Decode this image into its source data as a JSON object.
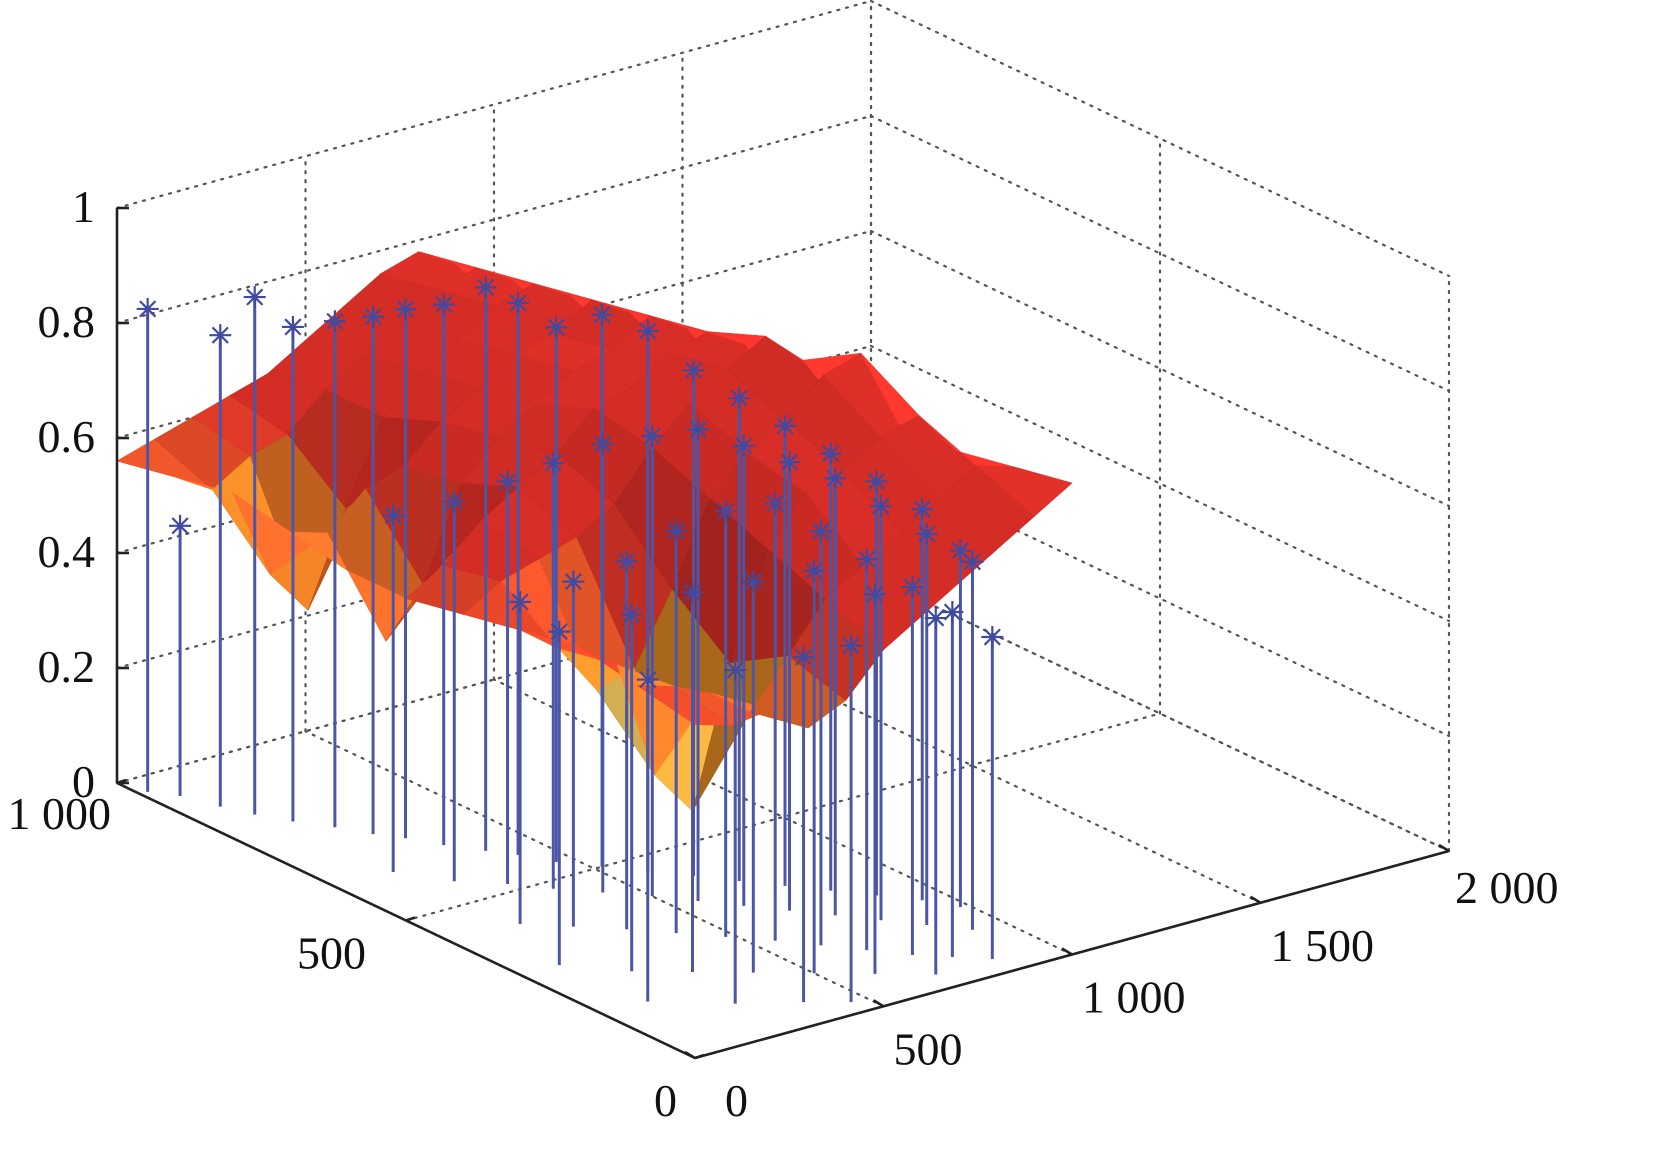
{
  "chart_data": {
    "type": "surface3d-stem",
    "title": "",
    "xlabel": "",
    "ylabel": "",
    "zlabel": "",
    "xlim": [
      0,
      2000
    ],
    "ylim": [
      0,
      1000
    ],
    "zlim": [
      0,
      1
    ],
    "x_ticks": [
      0,
      500,
      1000,
      1500,
      2000
    ],
    "x_tick_labels": [
      "0",
      "500",
      "1 000",
      "1 500",
      "2 000"
    ],
    "y_ticks": [
      0,
      500,
      1000
    ],
    "y_tick_labels": [
      "0",
      "500",
      "1 000"
    ],
    "z_ticks": [
      0,
      0.2,
      0.4,
      0.6,
      0.8,
      1
    ],
    "z_tick_labels": [
      "0",
      "0.2",
      "0.4",
      "0.6",
      "0.8",
      "1"
    ],
    "grid": true,
    "colors": {
      "surface_high": "#e8312a",
      "surface_mid": "#f2a026",
      "surface_low": "#2fb3d6",
      "stem": "#4b57a6",
      "marker": "#3f4aa0"
    },
    "surface": {
      "x": [
        0,
        100,
        200,
        300,
        400,
        500,
        600,
        700,
        800,
        900,
        1000
      ],
      "y": [
        0,
        100,
        200,
        300,
        400,
        500,
        600,
        700,
        800,
        900,
        1000
      ],
      "z": [
        [
          0.58,
          0.56,
          0.57,
          0.52,
          0.55,
          0.62,
          0.66,
          0.7,
          0.74,
          0.78,
          0.82
        ],
        [
          0.6,
          0.58,
          0.55,
          0.5,
          0.58,
          0.66,
          0.7,
          0.74,
          0.78,
          0.82,
          0.8
        ],
        [
          0.62,
          0.57,
          0.36,
          0.28,
          0.52,
          0.7,
          0.78,
          0.8,
          0.84,
          0.86,
          0.78
        ],
        [
          0.6,
          0.55,
          0.46,
          0.48,
          0.6,
          0.74,
          0.8,
          0.84,
          0.9,
          0.92,
          0.78
        ],
        [
          0.58,
          0.62,
          0.64,
          0.66,
          0.7,
          0.78,
          0.84,
          0.88,
          0.92,
          0.86,
          0.76
        ],
        [
          0.56,
          0.6,
          0.66,
          0.7,
          0.74,
          0.8,
          0.82,
          0.86,
          0.88,
          0.84,
          0.74
        ],
        [
          0.56,
          0.42,
          0.5,
          0.66,
          0.72,
          0.76,
          0.8,
          0.82,
          0.86,
          0.82,
          0.72
        ],
        [
          0.58,
          0.56,
          0.62,
          0.64,
          0.7,
          0.74,
          0.78,
          0.8,
          0.84,
          0.8,
          0.72
        ],
        [
          0.6,
          0.44,
          0.36,
          0.52,
          0.66,
          0.72,
          0.76,
          0.8,
          0.82,
          0.78,
          0.7
        ],
        [
          0.58,
          0.54,
          0.58,
          0.6,
          0.66,
          0.7,
          0.74,
          0.78,
          0.8,
          0.76,
          0.68
        ],
        [
          0.56,
          0.58,
          0.6,
          0.62,
          0.64,
          0.68,
          0.72,
          0.76,
          0.78,
          0.74,
          0.66
        ]
      ]
    },
    "stem_points": [
      {
        "x": 20,
        "y": 960,
        "z": 0.84
      },
      {
        "x": 60,
        "y": 930,
        "z": 0.47
      },
      {
        "x": 90,
        "y": 880,
        "z": 0.82
      },
      {
        "x": 120,
        "y": 840,
        "z": 0.9
      },
      {
        "x": 160,
        "y": 800,
        "z": 0.86
      },
      {
        "x": 210,
        "y": 760,
        "z": 0.88
      },
      {
        "x": 250,
        "y": 720,
        "z": 0.9
      },
      {
        "x": 290,
        "y": 690,
        "z": 0.92
      },
      {
        "x": 330,
        "y": 650,
        "z": 0.94
      },
      {
        "x": 380,
        "y": 610,
        "z": 0.98
      },
      {
        "x": 420,
        "y": 580,
        "z": 0.96
      },
      {
        "x": 460,
        "y": 540,
        "z": 0.93
      },
      {
        "x": 520,
        "y": 500,
        "z": 0.96
      },
      {
        "x": 580,
        "y": 460,
        "z": 0.94
      },
      {
        "x": 640,
        "y": 420,
        "z": 0.88
      },
      {
        "x": 700,
        "y": 380,
        "z": 0.84
      },
      {
        "x": 760,
        "y": 340,
        "z": 0.8
      },
      {
        "x": 820,
        "y": 300,
        "z": 0.76
      },
      {
        "x": 880,
        "y": 260,
        "z": 0.72
      },
      {
        "x": 940,
        "y": 220,
        "z": 0.68
      },
      {
        "x": 980,
        "y": 180,
        "z": 0.62
      },
      {
        "x": 150,
        "y": 620,
        "z": 0.62
      },
      {
        "x": 220,
        "y": 560,
        "z": 0.66
      },
      {
        "x": 300,
        "y": 520,
        "z": 0.7
      },
      {
        "x": 360,
        "y": 480,
        "z": 0.74
      },
      {
        "x": 430,
        "y": 440,
        "z": 0.78
      },
      {
        "x": 500,
        "y": 400,
        "z": 0.8
      },
      {
        "x": 560,
        "y": 360,
        "z": 0.82
      },
      {
        "x": 620,
        "y": 320,
        "z": 0.8
      },
      {
        "x": 680,
        "y": 280,
        "z": 0.78
      },
      {
        "x": 740,
        "y": 240,
        "z": 0.76
      },
      {
        "x": 800,
        "y": 200,
        "z": 0.72
      },
      {
        "x": 860,
        "y": 160,
        "z": 0.68
      },
      {
        "x": 920,
        "y": 120,
        "z": 0.64
      },
      {
        "x": 180,
        "y": 420,
        "z": 0.56
      },
      {
        "x": 260,
        "y": 380,
        "z": 0.6
      },
      {
        "x": 340,
        "y": 340,
        "z": 0.64
      },
      {
        "x": 410,
        "y": 300,
        "z": 0.7
      },
      {
        "x": 480,
        "y": 260,
        "z": 0.74
      },
      {
        "x": 550,
        "y": 220,
        "z": 0.76
      },
      {
        "x": 610,
        "y": 180,
        "z": 0.72
      },
      {
        "x": 670,
        "y": 140,
        "z": 0.68
      },
      {
        "x": 730,
        "y": 100,
        "z": 0.64
      },
      {
        "x": 790,
        "y": 70,
        "z": 0.6
      },
      {
        "x": 850,
        "y": 40,
        "z": 0.56
      },
      {
        "x": 100,
        "y": 300,
        "z": 0.58
      },
      {
        "x": 200,
        "y": 240,
        "z": 0.62
      },
      {
        "x": 300,
        "y": 200,
        "z": 0.66
      },
      {
        "x": 400,
        "y": 160,
        "z": 0.68
      },
      {
        "x": 500,
        "y": 120,
        "z": 0.7
      },
      {
        "x": 600,
        "y": 80,
        "z": 0.66
      },
      {
        "x": 700,
        "y": 40,
        "z": 0.62
      },
      {
        "x": 120,
        "y": 160,
        "z": 0.56
      },
      {
        "x": 260,
        "y": 100,
        "z": 0.58
      },
      {
        "x": 380,
        "y": 60,
        "z": 0.6
      },
      {
        "x": 460,
        "y": 30,
        "z": 0.62
      }
    ]
  }
}
